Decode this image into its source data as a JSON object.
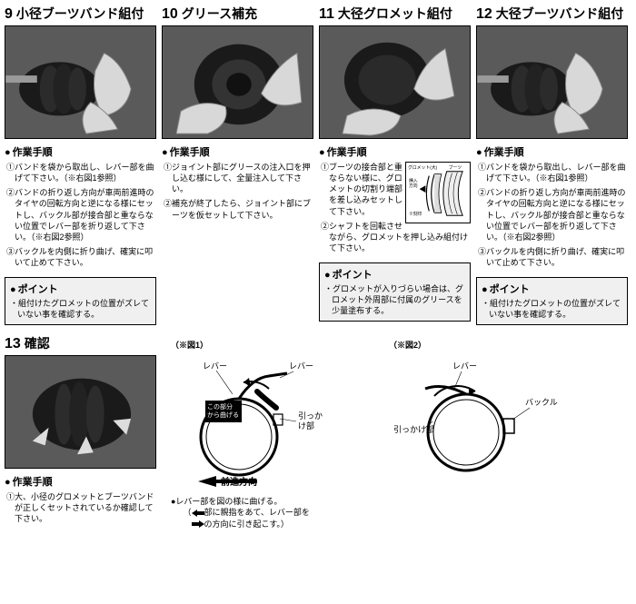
{
  "cards": [
    {
      "num": "9",
      "title": "小径ブーツバンド組付",
      "stepsHead": "作業手順",
      "steps": [
        "①バンドを袋から取出し、レバー部を曲げて下さい。（※右図1参照）",
        "②バンドの折り返し方向が車両前進時のタイヤの回転方向と逆になる様にセットし、バックル部が接合部と重ならない位置でレバー部を折り返して下さい。（※右図2参照）",
        "③バックルを内側に折り曲げ、確実に叩いて止めて下さい。"
      ],
      "pointHead": "ポイント",
      "points": [
        "組付けたグロメットの位置がズレていない事を確認する。"
      ]
    },
    {
      "num": "10",
      "title": "グリース補充",
      "stepsHead": "作業手順",
      "steps": [
        "①ジョイント部にグリースの注入口を押し込む様にして、全量注入して下さい。",
        "②補充が終了したら、ジョイント部にブーツを仮セットして下さい。"
      ]
    },
    {
      "num": "11",
      "title": "大径グロメット組付",
      "stepsHead": "作業手順",
      "inlineDiagram": {
        "labels": {
          "grommet": "グロメット(大)",
          "boot": "ブーツ",
          "dir": "挿入方向",
          "mark": "※刻印"
        }
      },
      "steps": [
        "①ブーツの接合部と重ならない様に、グロメットの切割り端部を差し込みセットして下さい。",
        "②シャフトを回転させながら、グロメットを押し込み組付けて下さい。"
      ],
      "pointHead": "ポイント",
      "points": [
        "グロメットが入りづらい場合は、グロメット外周部に付属のグリースを少量塗布する。"
      ]
    },
    {
      "num": "12",
      "title": "大径ブーツバンド組付",
      "stepsHead": "作業手順",
      "steps": [
        "①バンドを袋から取出し、レバー部を曲げて下さい。（※右図1参照）",
        "②バンドの折り返し方向が車両前進時のタイヤの回転方向と逆になる様にセットし、バックル部が接合部と重ならない位置でレバー部を折り返して下さい。（※右図2参照）",
        "③バックルを内側に折り曲げ、確実に叩いて止めて下さい。"
      ],
      "pointHead": "ポイント",
      "points": [
        "組付けたグロメットの位置がズレていない事を確認する。"
      ]
    },
    {
      "num": "13",
      "title": "確認",
      "stepsHead": "作業手順",
      "steps": [
        "①大、小径のグロメットとブーツバンドが正しくセットされているか確認して下さい。"
      ]
    }
  ],
  "figures": {
    "fig1": {
      "label": "（※図1）",
      "lever": "レバー",
      "lever2": "レバー",
      "bend": "この部分から曲げる",
      "hook": "引っかけ部",
      "forward": "前進方向"
    },
    "fig2": {
      "label": "（※図2）",
      "lever": "レバー",
      "hook": "引っかけ部",
      "buckle": "バックル"
    },
    "notes": [
      "●レバー部を図の様に曲げる。",
      "（　　部に親指をあて、レバー部を",
      "　　　の方向に引き起こす。）"
    ]
  },
  "colors": {
    "bg": "#ffffff",
    "ink": "#000000",
    "panel": "#f0f0f0",
    "photo": "#5a5a5a",
    "boot": "#1a1a1a",
    "glove": "#d8d8d8",
    "metal": "#9a9a9a"
  }
}
